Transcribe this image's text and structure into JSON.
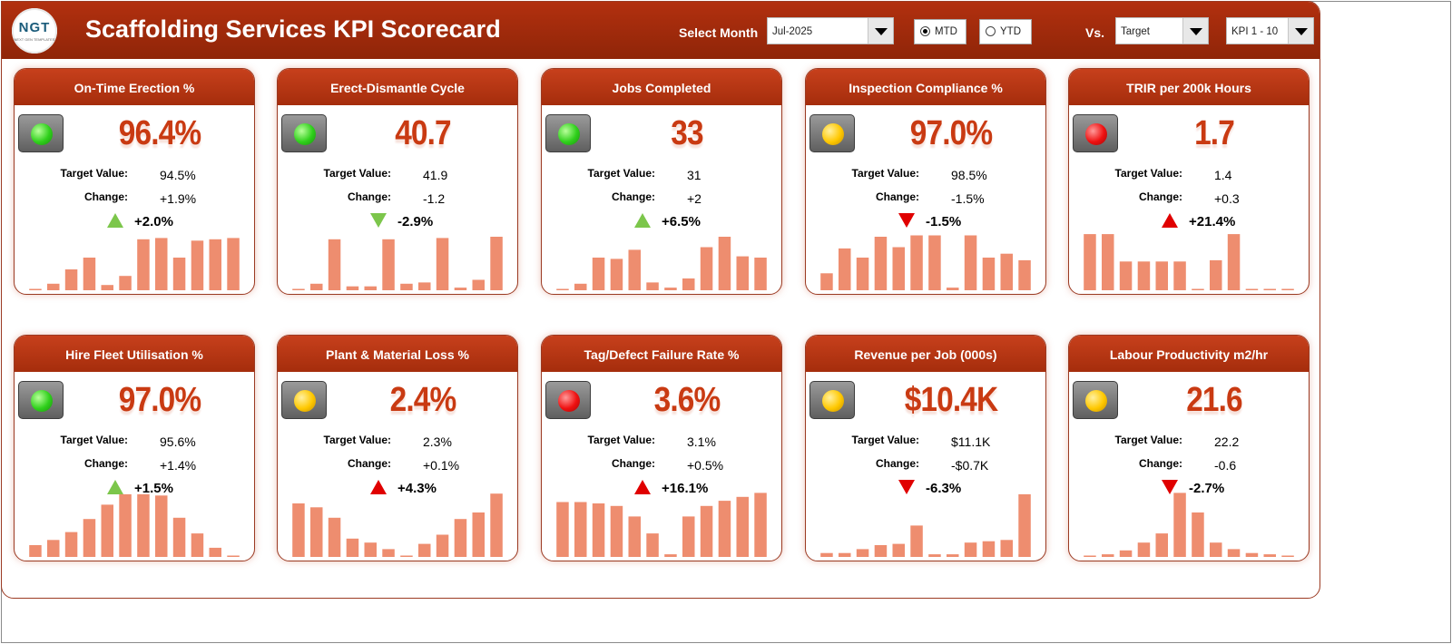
{
  "header": {
    "title": "Scaffolding Services KPI Scorecard",
    "logo_text": "NGT",
    "logo_sub": "NEXT GEN TEMPLATES",
    "select_month_label": "Select Month",
    "month_value": "Jul-2025",
    "mtd_label": "MTD",
    "ytd_label": "YTD",
    "period_selected": "MTD",
    "vs_label": "Vs.",
    "compare_value": "Target",
    "kpi_range_value": "KPI 1 - 10"
  },
  "colors": {
    "header": "#a52d0c",
    "value": "#c93a12",
    "bar": "#ee8d6f",
    "up": "#7cc64b",
    "down": "#e00000"
  },
  "labels": {
    "target": "Target Value:",
    "change": "Change:"
  },
  "cards": [
    {
      "title": "On-Time Erection %",
      "value": "96.4%",
      "status": "green",
      "target": "94.5%",
      "change": "+1.9%",
      "pct": "+2.0%",
      "arrow": "up",
      "arrow_color": "green",
      "bars": [
        0.02,
        0.1,
        0.32,
        0.5,
        0.08,
        0.22,
        0.78,
        0.8,
        0.5,
        0.76,
        0.78,
        0.8
      ]
    },
    {
      "title": "Erect-Dismantle Cycle",
      "value": "40.7",
      "status": "green",
      "target": "41.9",
      "change": "-1.2",
      "pct": "-2.9%",
      "arrow": "down",
      "arrow_color": "green",
      "bars": [
        0.02,
        0.1,
        0.78,
        0.06,
        0.06,
        0.78,
        0.1,
        0.12,
        0.8,
        0.04,
        0.16,
        0.82
      ]
    },
    {
      "title": "Jobs Completed",
      "value": "33",
      "status": "green",
      "target": "31",
      "change": "+2",
      "pct": "+6.5%",
      "arrow": "up",
      "arrow_color": "green",
      "bars": [
        0.02,
        0.1,
        0.5,
        0.48,
        0.62,
        0.12,
        0.04,
        0.18,
        0.66,
        0.82,
        0.52,
        0.5
      ]
    },
    {
      "title": "Inspection Compliance %",
      "value": "97.0%",
      "status": "yellow",
      "target": "98.5%",
      "change": "-1.5%",
      "pct": "-1.5%",
      "arrow": "down",
      "arrow_color": "red",
      "bars": [
        0.26,
        0.64,
        0.5,
        0.82,
        0.66,
        0.84,
        0.84,
        0.04,
        0.84,
        0.5,
        0.56,
        0.46
      ]
    },
    {
      "title": "TRIR per 200k Hours",
      "value": "1.7",
      "status": "red",
      "target": "1.4",
      "change": "+0.3",
      "pct": "+21.4%",
      "arrow": "up",
      "arrow_color": "red",
      "bars": [
        0.86,
        0.86,
        0.44,
        0.44,
        0.44,
        0.44,
        0.02,
        0.46,
        0.86,
        0.02,
        0.02,
        0.02
      ]
    },
    {
      "title": "Hire Fleet Utilisation %",
      "value": "97.0%",
      "status": "green",
      "target": "95.6%",
      "change": "+1.4%",
      "pct": "+1.5%",
      "arrow": "up",
      "arrow_color": "green",
      "bars": [
        0.18,
        0.26,
        0.38,
        0.58,
        0.8,
        0.96,
        0.96,
        0.94,
        0.6,
        0.36,
        0.14,
        0.02
      ]
    },
    {
      "title": "Plant & Material Loss %",
      "value": "2.4%",
      "status": "yellow",
      "target": "2.3%",
      "change": "+0.1%",
      "pct": "+4.3%",
      "arrow": "up",
      "arrow_color": "red",
      "bars": [
        0.82,
        0.76,
        0.6,
        0.28,
        0.22,
        0.12,
        0.02,
        0.2,
        0.34,
        0.58,
        0.68,
        0.97
      ]
    },
    {
      "title": "Tag/Defect Failure Rate %",
      "value": "3.6%",
      "status": "red",
      "target": "3.1%",
      "change": "+0.5%",
      "pct": "+16.1%",
      "arrow": "up",
      "arrow_color": "red",
      "bars": [
        0.84,
        0.84,
        0.82,
        0.78,
        0.62,
        0.36,
        0.04,
        0.62,
        0.78,
        0.86,
        0.92,
        0.98
      ]
    },
    {
      "title": "Revenue per Job (000s)",
      "value": "$10.4K",
      "status": "yellow",
      "target": "$11.1K",
      "change": "-$0.7K",
      "pct": "-6.3%",
      "arrow": "down",
      "arrow_color": "red",
      "bars": [
        0.06,
        0.06,
        0.12,
        0.18,
        0.2,
        0.48,
        0.04,
        0.04,
        0.22,
        0.24,
        0.26,
        0.96
      ]
    },
    {
      "title": "Labour Productivity m2/hr",
      "value": "21.6",
      "status": "yellow",
      "target": "22.2",
      "change": "-0.6",
      "pct": "-2.7%",
      "arrow": "down",
      "arrow_color": "red",
      "bars": [
        0.02,
        0.04,
        0.1,
        0.22,
        0.36,
        0.98,
        0.68,
        0.22,
        0.12,
        0.06,
        0.04,
        0.02
      ]
    }
  ]
}
